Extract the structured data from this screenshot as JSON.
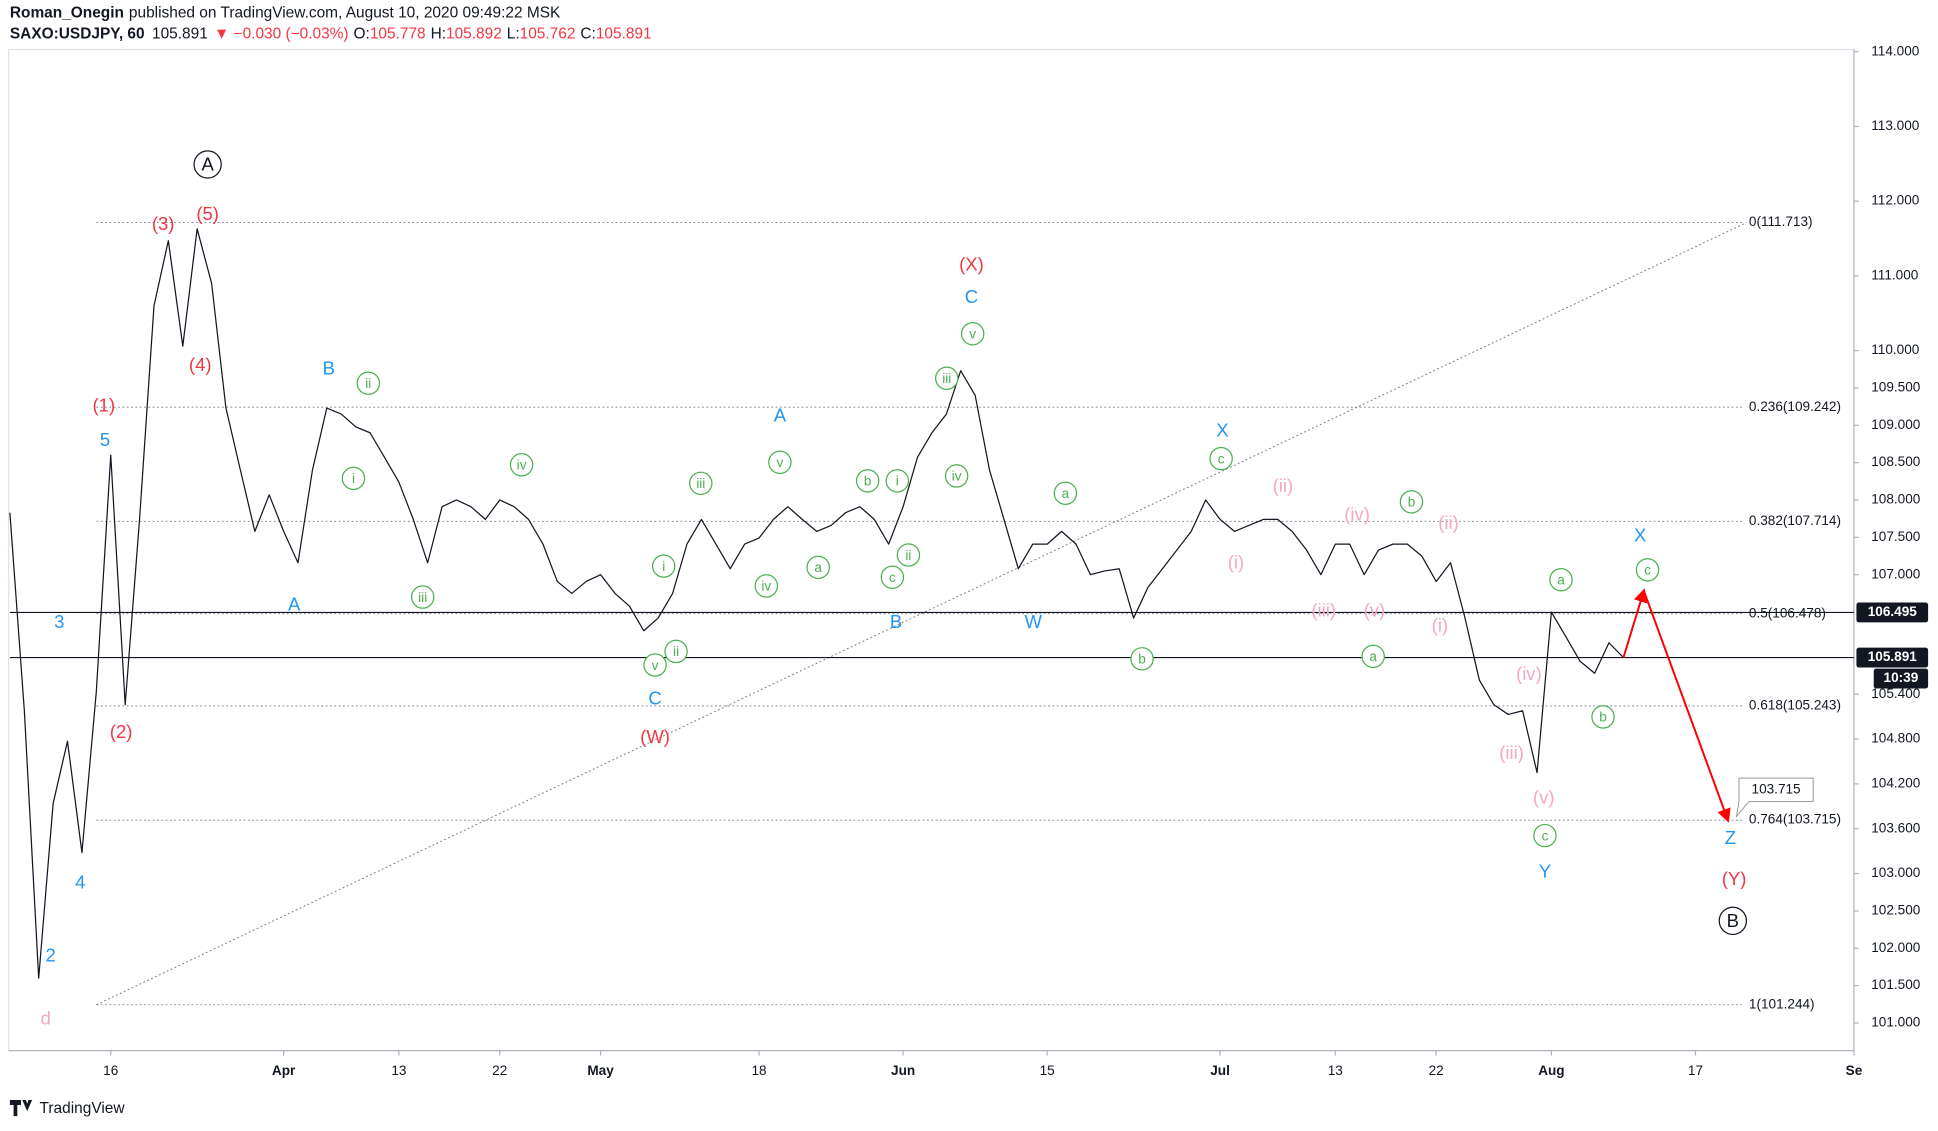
{
  "header": {
    "author": "Roman_Onegin",
    "published": "published on TradingView.com, August 10, 2020 09:49:22 MSK",
    "symbol": "SAXO:USDJPY, 60",
    "last": 105.891,
    "change": "▼ −0.030 (−0.03%)",
    "ohlc": [
      {
        "label": "O:",
        "value": 105.778
      },
      {
        "label": "H:",
        "value": 105.892
      },
      {
        "label": "L:",
        "value": 105.762
      },
      {
        "label": "C:",
        "value": 105.891
      }
    ]
  },
  "footer": {
    "brand": "TradingView"
  },
  "chart_data": {
    "type": "line",
    "color": "#131722",
    "x": [
      "2020-03-05",
      "2020-03-06",
      "2020-03-09",
      "2020-03-10",
      "2020-03-11",
      "2020-03-12",
      "2020-03-13",
      "2020-03-16",
      "2020-03-17",
      "2020-03-18",
      "2020-03-19",
      "2020-03-20",
      "2020-03-23",
      "2020-03-24",
      "2020-03-25",
      "2020-03-26",
      "2020-03-27",
      "2020-03-30",
      "2020-03-31",
      "2020-04-01",
      "2020-04-02",
      "2020-04-03",
      "2020-04-06",
      "2020-04-07",
      "2020-04-08",
      "2020-04-09",
      "2020-04-10",
      "2020-04-13",
      "2020-04-14",
      "2020-04-15",
      "2020-04-16",
      "2020-04-17",
      "2020-04-20",
      "2020-04-21",
      "2020-04-22",
      "2020-04-23",
      "2020-04-24",
      "2020-04-27",
      "2020-04-28",
      "2020-04-29",
      "2020-04-30",
      "2020-05-01",
      "2020-05-04",
      "2020-05-05",
      "2020-05-06",
      "2020-05-07",
      "2020-05-08",
      "2020-05-11",
      "2020-05-12",
      "2020-05-13",
      "2020-05-14",
      "2020-05-15",
      "2020-05-18",
      "2020-05-19",
      "2020-05-20",
      "2020-05-21",
      "2020-05-22",
      "2020-05-25",
      "2020-05-26",
      "2020-05-27",
      "2020-05-28",
      "2020-05-29",
      "2020-06-01",
      "2020-06-02",
      "2020-06-03",
      "2020-06-04",
      "2020-06-05",
      "2020-06-08",
      "2020-06-09",
      "2020-06-10",
      "2020-06-11",
      "2020-06-12",
      "2020-06-15",
      "2020-06-16",
      "2020-06-17",
      "2020-06-18",
      "2020-06-19",
      "2020-06-22",
      "2020-06-23",
      "2020-06-24",
      "2020-06-25",
      "2020-06-26",
      "2020-06-29",
      "2020-06-30",
      "2020-07-01",
      "2020-07-02",
      "2020-07-03",
      "2020-07-06",
      "2020-07-07",
      "2020-07-08",
      "2020-07-09",
      "2020-07-10",
      "2020-07-13",
      "2020-07-14",
      "2020-07-15",
      "2020-07-16",
      "2020-07-17",
      "2020-07-20",
      "2020-07-21",
      "2020-07-22",
      "2020-07-23",
      "2020-07-24",
      "2020-07-27",
      "2020-07-28",
      "2020-07-29",
      "2020-07-30",
      "2020-07-31",
      "2020-08-03",
      "2020-08-04",
      "2020-08-05",
      "2020-08-06",
      "2020-08-07",
      "2020-08-10"
    ],
    "values": [
      107.83,
      105.18,
      101.6,
      103.94,
      104.77,
      103.28,
      105.43,
      108.6,
      105.26,
      107.74,
      110.6,
      111.47,
      110.06,
      111.63,
      110.9,
      109.23,
      108.4,
      107.58,
      108.07,
      107.58,
      107.16,
      108.4,
      109.23,
      109.15,
      108.98,
      108.9,
      108.57,
      108.24,
      107.74,
      107.16,
      107.91,
      108.0,
      107.91,
      107.74,
      108.0,
      107.91,
      107.74,
      107.41,
      106.91,
      106.75,
      106.91,
      107.0,
      106.75,
      106.58,
      106.25,
      106.42,
      106.75,
      107.41,
      107.74,
      107.41,
      107.08,
      107.41,
      107.49,
      107.74,
      107.91,
      107.74,
      107.58,
      107.66,
      107.83,
      107.91,
      107.74,
      107.41,
      107.91,
      108.57,
      108.9,
      109.15,
      109.73,
      109.4,
      108.4,
      107.74,
      107.08,
      107.41,
      107.41,
      107.58,
      107.41,
      107.0,
      107.05,
      107.08,
      106.42,
      106.83,
      107.08,
      107.33,
      107.58,
      108.0,
      107.74,
      107.58,
      107.66,
      107.74,
      107.74,
      107.58,
      107.33,
      107.0,
      107.41,
      107.41,
      107.0,
      107.33,
      107.41,
      107.41,
      107.25,
      106.91,
      107.16,
      106.42,
      105.59,
      105.26,
      105.13,
      105.18,
      104.35,
      106.5,
      106.17,
      105.84,
      105.68,
      106.09,
      105.891
    ],
    "xlim": [
      "2020-03-05",
      "2020-09-01"
    ],
    "xticks": [
      {
        "value": "2020-03-16",
        "label": "16"
      },
      {
        "value": "2020-04-01",
        "label": "Apr"
      },
      {
        "value": "2020-04-13",
        "label": "13"
      },
      {
        "value": "2020-04-22",
        "label": "22"
      },
      {
        "value": "2020-05-01",
        "label": "May"
      },
      {
        "value": "2020-05-18",
        "label": "18"
      },
      {
        "value": "2020-06-01",
        "label": "Jun"
      },
      {
        "value": "2020-06-15",
        "label": "15"
      },
      {
        "value": "2020-07-01",
        "label": "Jul"
      },
      {
        "value": "2020-07-13",
        "label": "13"
      },
      {
        "value": "2020-07-22",
        "label": "22"
      },
      {
        "value": "2020-08-01",
        "label": "Aug"
      },
      {
        "value": "2020-08-17",
        "label": "17"
      },
      {
        "value": "2020-09-01",
        "label": "Se"
      }
    ],
    "ylim": [
      100.63,
      114.03
    ],
    "yticks": [
      {
        "value": 114,
        "label": "114.000"
      },
      {
        "value": 113,
        "label": "113.000"
      },
      {
        "value": 112,
        "label": "112.000"
      },
      {
        "value": 111,
        "label": "111.000"
      },
      {
        "value": 110,
        "label": "110.000"
      },
      {
        "value": 109.5,
        "label": "109.500"
      },
      {
        "value": 109,
        "label": "109.000"
      },
      {
        "value": 108.5,
        "label": "108.500"
      },
      {
        "value": 108,
        "label": "108.000"
      },
      {
        "value": 107.5,
        "label": "107.500"
      },
      {
        "value": 107,
        "label": "107.000"
      },
      {
        "value": 105.4,
        "label": "105.400"
      },
      {
        "value": 104.8,
        "label": "104.800"
      },
      {
        "value": 104.2,
        "label": "104.200"
      },
      {
        "value": 103.6,
        "label": "103.600"
      },
      {
        "value": 103,
        "label": "103.000"
      },
      {
        "value": 102.5,
        "label": "102.500"
      },
      {
        "value": 102,
        "label": "102.000"
      },
      {
        "value": 101.5,
        "label": "101.500"
      },
      {
        "value": 101,
        "label": "101.000"
      }
    ],
    "fib_levels": [
      {
        "value": 111.713,
        "label": "0(111.713)"
      },
      {
        "value": 109.242,
        "label": "0.236(109.242)"
      },
      {
        "value": 107.714,
        "label": "0.382(107.714)"
      },
      {
        "value": 106.478,
        "label": "0.5(106.478)"
      },
      {
        "value": 105.243,
        "label": "0.618(105.243)"
      },
      {
        "value": 103.715,
        "label": "0.764(103.715)"
      },
      {
        "value": 101.244,
        "label": "1(101.244)"
      }
    ],
    "price_lines": [
      {
        "value": 106.495,
        "label": "106.495"
      },
      {
        "value": 105.891,
        "label": "105.891",
        "countdown": "10:39"
      }
    ],
    "target": {
      "value": 103.715,
      "label": "103.715",
      "color": "#ff0000"
    },
    "wave_labels": [
      {
        "color": "#131722",
        "circled": true,
        "labels": [
          "A",
          "B"
        ]
      },
      {
        "color": "#f23645",
        "circled": false,
        "labels": [
          "(3)",
          "(5)",
          "(4)",
          "(1)",
          "(2)",
          "(X)",
          "(W)",
          "(Y)"
        ]
      },
      {
        "color": "#2196f3",
        "circled": false,
        "labels": [
          "5",
          "3",
          "4",
          "2",
          "B",
          "A",
          "A",
          "C",
          "B",
          "C",
          "W",
          "X",
          "Y",
          "X",
          "Z"
        ]
      },
      {
        "color": "#f4a7c3",
        "circled": false,
        "labels": [
          "d",
          "(ii)",
          "(i)",
          "(iv)",
          "(iii)",
          "(v)",
          "(ii)",
          "(i)",
          "(iv)",
          "(iii)",
          "(v)"
        ]
      },
      {
        "color": "#4caf50",
        "circled": true,
        "labels": [
          "ii",
          "i",
          "iv",
          "iii",
          "iii",
          "v",
          "i",
          "iv",
          "a",
          "ii",
          "v",
          "b",
          "i",
          "ii",
          "c",
          "iii",
          "v",
          "iv",
          "a",
          "c",
          "b",
          "b",
          "a",
          "a",
          "c",
          "b",
          "c"
        ]
      }
    ]
  }
}
